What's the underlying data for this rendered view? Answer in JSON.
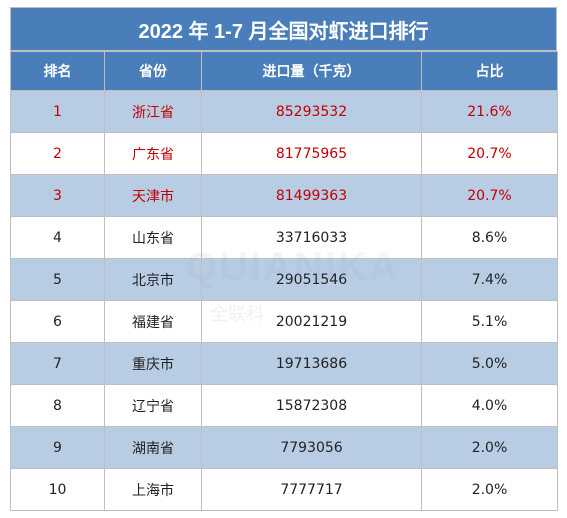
{
  "title": "2022 年 1-7 月全国对虾进口排行",
  "headers": [
    "排名",
    "省份",
    "进口量（千克）",
    "占比"
  ],
  "rows": [
    {
      "rank": "1",
      "province": "浙江省",
      "volume": "85293532",
      "share": "21.6%"
    },
    {
      "rank": "2",
      "province": "广东省",
      "volume": "81775965",
      "share": "20.7%"
    },
    {
      "rank": "3",
      "province": "天津市",
      "volume": "81499363",
      "share": "20.7%"
    },
    {
      "rank": "4",
      "province": "山东省",
      "volume": "33716033",
      "share": "8.6%"
    },
    {
      "rank": "5",
      "province": "北京市",
      "volume": "29051546",
      "share": "7.4%"
    },
    {
      "rank": "6",
      "province": "福建省",
      "volume": "20021219",
      "share": "5.1%"
    },
    {
      "rank": "7",
      "province": "重庆市",
      "volume": "19713686",
      "share": "5.0%"
    },
    {
      "rank": "8",
      "province": "辽宁省",
      "volume": "15872308",
      "share": "4.0%"
    },
    {
      "rank": "9",
      "province": "湖南省",
      "volume": "7793056",
      "share": "2.0%"
    },
    {
      "rank": "10",
      "province": "上海市",
      "volume": "7777717",
      "share": "2.0%"
    }
  ],
  "watermark": {
    "en": "QUIANIKA",
    "cn": "全联科"
  },
  "colors": {
    "header_bg": "#4a7ebb",
    "shade_row": "#b8cce4",
    "highlight_text": "#c00000"
  }
}
